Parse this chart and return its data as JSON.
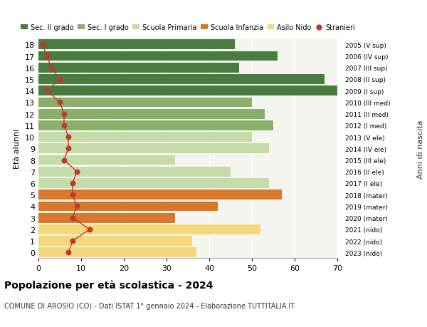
{
  "ages": [
    18,
    17,
    16,
    15,
    14,
    13,
    12,
    11,
    10,
    9,
    8,
    7,
    6,
    5,
    4,
    3,
    2,
    1,
    0
  ],
  "bar_values": [
    46,
    56,
    47,
    67,
    70,
    50,
    53,
    55,
    50,
    54,
    32,
    45,
    54,
    57,
    42,
    32,
    52,
    36,
    37
  ],
  "stranieri_values": [
    1,
    2,
    3,
    5,
    2,
    5,
    6,
    6,
    7,
    7,
    6,
    9,
    8,
    8,
    9,
    8,
    12,
    8,
    7
  ],
  "right_labels": [
    "2005 (V sup)",
    "2006 (IV sup)",
    "2007 (III sup)",
    "2008 (II sup)",
    "2009 (I sup)",
    "2010 (III med)",
    "2011 (II med)",
    "2012 (I med)",
    "2013 (V ele)",
    "2014 (IV ele)",
    "2015 (III ele)",
    "2016 (II ele)",
    "2017 (I ele)",
    "2018 (mater)",
    "2019 (mater)",
    "2020 (mater)",
    "2021 (nido)",
    "2022 (nido)",
    "2023 (nido)"
  ],
  "bar_colors": [
    "#4a7c40",
    "#4a7c40",
    "#4a7c40",
    "#4a7c40",
    "#4a7c40",
    "#8aaf6a",
    "#8aaf6a",
    "#8aaf6a",
    "#c5dba8",
    "#c5dba8",
    "#c5dba8",
    "#c5dba8",
    "#c5dba8",
    "#d9772a",
    "#d9772a",
    "#d9772a",
    "#f5d87a",
    "#f5d87a",
    "#f5d87a"
  ],
  "legend_colors": [
    "#4a7c40",
    "#8aaf6a",
    "#c5dba8",
    "#d9772a",
    "#f5d87a"
  ],
  "legend_labels": [
    "Sec. II grado",
    "Sec. I grado",
    "Scuola Primaria",
    "Scuola Infanzia",
    "Asilo Nido",
    "Stranieri"
  ],
  "stranieri_color": "#c0392b",
  "title": "Popolazione per età scolastica - 2024",
  "subtitle": "COMUNE DI AROSIO (CO) - Dati ISTAT 1° gennaio 2024 - Elaborazione TUTTITALIA.IT",
  "anni_label": "Anni di nascita",
  "ylabel": "Età alunni",
  "xlim": [
    0,
    70
  ],
  "xticks": [
    0,
    10,
    20,
    30,
    40,
    50,
    60,
    70
  ],
  "plot_bg": "#f5f5f0",
  "fig_bg": "#ffffff",
  "grid_color": "#ffffff"
}
